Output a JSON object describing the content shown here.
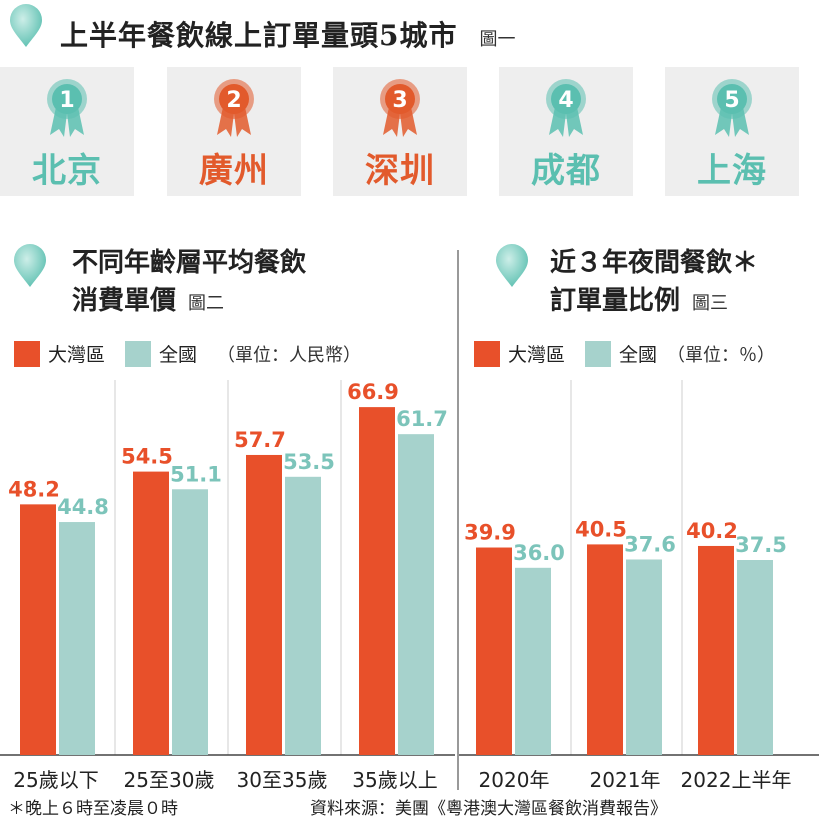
{
  "colors": {
    "bay_area": "#e8502a",
    "national": "#a6d2cc",
    "card_bg": "#eeeeee",
    "medal_teal": "#6cc3b7",
    "medal_orange": "#e8502a"
  },
  "fig1": {
    "title": "上半年餐飲線上訂單量頭5城市",
    "tag": "圖一",
    "cities": [
      {
        "rank": "1",
        "name": "北京",
        "color": "#5bbfb0"
      },
      {
        "rank": "2",
        "name": "廣州",
        "color": "#e25a2c"
      },
      {
        "rank": "3",
        "name": "深圳",
        "color": "#e25a2c"
      },
      {
        "rank": "4",
        "name": "成都",
        "color": "#5bbfb0"
      },
      {
        "rank": "5",
        "name": "上海",
        "color": "#5bbfb0"
      }
    ]
  },
  "fig2": {
    "title_line1": "不同年齡層平均餐飲",
    "title_line2": "消費單價",
    "tag": "圖二",
    "legend_a": "大灣區",
    "legend_b": "全國",
    "unit": "（單位：人民幣）"
  },
  "fig3": {
    "title_line1": "近３年夜間餐飲＊",
    "title_line2": "訂單量比例",
    "tag": "圖三",
    "legend_a": "大灣區",
    "legend_b": "全國",
    "unit": "（單位：％）"
  },
  "footer": {
    "note": "＊晚上６時至凌晨０時",
    "source": "資料來源：美團《粵港澳大灣區餐飲消費報告》"
  },
  "chart_data": [
    {
      "type": "bar",
      "categories": [
        "25歲以下",
        "25至30歲",
        "30至35歲",
        "35歲以上"
      ],
      "series": [
        {
          "name": "大灣區",
          "values": [
            48.2,
            54.5,
            57.7,
            66.9
          ]
        },
        {
          "name": "全國",
          "values": [
            44.8,
            51.1,
            53.5,
            61.7
          ]
        }
      ],
      "value_labels": {
        "大灣區": [
          "48.2",
          "54.5",
          "57.7",
          "66.9"
        ],
        "全國": [
          "44.8",
          "51.1",
          "53.5",
          "61.7"
        ]
      },
      "title": "不同年齡層平均餐飲消費單價",
      "ylabel": "",
      "ylim": [
        0,
        70
      ],
      "grid": false
    },
    {
      "type": "bar",
      "categories": [
        "2020年",
        "2021年",
        "2022上半年"
      ],
      "series": [
        {
          "name": "大灣區",
          "values": [
            39.9,
            40.5,
            40.2
          ]
        },
        {
          "name": "全國",
          "values": [
            36.0,
            37.6,
            37.5
          ]
        }
      ],
      "value_labels": {
        "大灣區": [
          "39.9",
          "40.5",
          "40.2"
        ],
        "全國": [
          "36.0",
          "37.6",
          "37.5"
        ]
      },
      "title": "近３年夜間餐飲＊訂單量比例",
      "ylabel": "",
      "ylim": [
        0,
        70
      ],
      "grid": false
    }
  ]
}
